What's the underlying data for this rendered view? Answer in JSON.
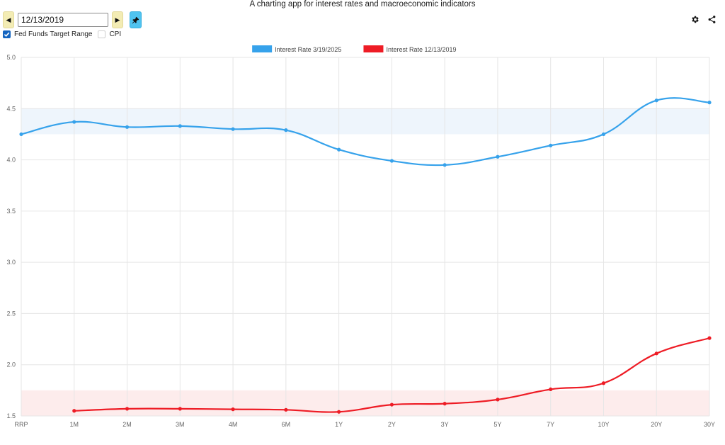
{
  "app_title": "A charting app for interest rates and macroeconomic indicators",
  "toolbar": {
    "date_value": "12/13/2019",
    "prev_icon": "triangle-left-icon",
    "next_icon": "triangle-right-icon",
    "pin_icon": "pin-icon"
  },
  "options": {
    "fed_funds_label": "Fed Funds Target Range",
    "fed_funds_checked": true,
    "cpi_label": "CPI",
    "cpi_checked": false
  },
  "top_icons": [
    "gear-icon",
    "share-icon"
  ],
  "colors": {
    "series_2025": "#36a2eb",
    "series_2019": "#ee1c25",
    "band_2025": "#eef5fc",
    "band_2019": "#fdecec",
    "grid": "#e6e6e6"
  },
  "chart_data": {
    "type": "line",
    "categories": [
      "RRP",
      "1M",
      "2M",
      "3M",
      "4M",
      "6M",
      "1Y",
      "2Y",
      "3Y",
      "5Y",
      "7Y",
      "10Y",
      "20Y",
      "30Y"
    ],
    "ylim": [
      1.5,
      5.0
    ],
    "yticks": [
      "5.0",
      "4.5",
      "4.0",
      "3.5",
      "3.0",
      "2.5",
      "2.0",
      "1.5"
    ],
    "grid": true,
    "legend_position": "top-center",
    "series": [
      {
        "name": "Interest Rate 3/19/2025",
        "color": "#36a2eb",
        "values": [
          4.25,
          4.37,
          4.32,
          4.33,
          4.3,
          4.29,
          4.1,
          3.99,
          3.95,
          4.03,
          4.14,
          4.25,
          4.58,
          4.56
        ]
      },
      {
        "name": "Interest Rate 12/13/2019",
        "color": "#ee1c25",
        "values": [
          null,
          1.55,
          1.57,
          1.57,
          1.565,
          1.56,
          1.54,
          1.61,
          1.62,
          1.66,
          1.76,
          1.82,
          2.11,
          2.26
        ]
      }
    ],
    "bands": [
      {
        "series": "Interest Rate 3/19/2025",
        "from": 4.25,
        "to": 4.5,
        "color": "#eef5fc"
      },
      {
        "series": "Interest Rate 12/13/2019",
        "from": 1.5,
        "to": 1.75,
        "color": "#fdecec"
      }
    ]
  }
}
